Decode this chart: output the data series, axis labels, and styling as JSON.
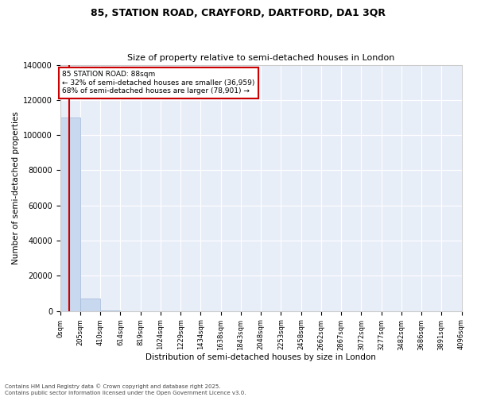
{
  "title": "85, STATION ROAD, CRAYFORD, DARTFORD, DA1 3QR",
  "subtitle": "Size of property relative to semi-detached houses in London",
  "xlabel": "Distribution of semi-detached houses by size in London",
  "ylabel": "Number of semi-detached properties",
  "property_size": 88,
  "annotation_title": "85 STATION ROAD: 88sqm",
  "annotation_line1": "← 32% of semi-detached houses are smaller (36,959)",
  "annotation_line2": "68% of semi-detached houses are larger (78,901) →",
  "footer_line1": "Contains HM Land Registry data © Crown copyright and database right 2025.",
  "footer_line2": "Contains public sector information licensed under the Open Government Licence v3.0.",
  "bar_color": "#c8d8ee",
  "bar_edge_color": "#a0b8d8",
  "line_color": "#cc0000",
  "annotation_box_color": "#ffffff",
  "annotation_box_edge": "#cc0000",
  "plot_bg_color": "#e8eef8",
  "fig_bg_color": "#ffffff",
  "ylim": [
    0,
    140000
  ],
  "bin_edges": [
    0,
    205,
    410,
    614,
    819,
    1024,
    1229,
    1434,
    1638,
    1843,
    2048,
    2253,
    2458,
    2662,
    2867,
    3072,
    3277,
    3482,
    3686,
    3891,
    4096
  ],
  "bin_labels": [
    "0sqm",
    "205sqm",
    "410sqm",
    "614sqm",
    "819sqm",
    "1024sqm",
    "1229sqm",
    "1434sqm",
    "1638sqm",
    "1843sqm",
    "2048sqm",
    "2253sqm",
    "2458sqm",
    "2662sqm",
    "2867sqm",
    "3072sqm",
    "3277sqm",
    "3482sqm",
    "3686sqm",
    "3891sqm",
    "4096sqm"
  ],
  "bar_heights": [
    110000,
    7000,
    500,
    50,
    10,
    5,
    2,
    1,
    1,
    0,
    0,
    0,
    0,
    0,
    0,
    0,
    0,
    0,
    0,
    0
  ],
  "yticks": [
    0,
    20000,
    40000,
    60000,
    80000,
    100000,
    120000,
    140000
  ],
  "ytick_labels": [
    "0",
    "20000",
    "40000",
    "60000",
    "80000",
    "100000",
    "120000",
    "140000"
  ]
}
